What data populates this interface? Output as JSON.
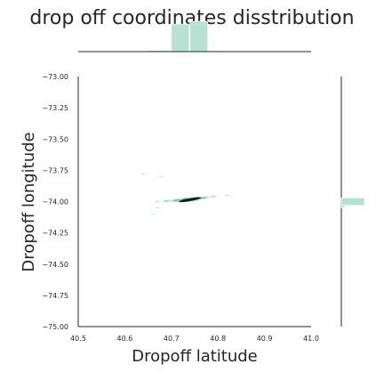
{
  "chart_data": {
    "type": "heatmap",
    "subtype": "joint-kde-with-marginal-histograms",
    "title": "drop off coordinates disstribution",
    "xlabel": "Dropoff latitude",
    "ylabel": "Dropoff longitude",
    "xlim": [
      40.5,
      41.0
    ],
    "ylim": [
      -75.0,
      -73.0
    ],
    "x_ticks": [
      40.5,
      40.6,
      40.7,
      40.8,
      40.9,
      41.0
    ],
    "x_tick_labels": [
      "40.5",
      "40.6",
      "40.7",
      "40.8",
      "40.9",
      "41.0"
    ],
    "y_ticks": [
      -73.0,
      -73.25,
      -73.5,
      -73.75,
      -74.0,
      -74.25,
      -74.5,
      -74.75,
      -75.0
    ],
    "y_tick_labels": [
      "−73.00",
      "−73.25",
      "−73.50",
      "−73.75",
      "−74.00",
      "−74.25",
      "−74.50",
      "−74.75",
      "−75.00"
    ],
    "grid": false,
    "colors": {
      "marginal_fill": "#b7e2d3",
      "density_low": "#eef8f4",
      "density_mid": "#7ccfb0",
      "density_high": "#1e5a45",
      "density_core": "#0c1f18",
      "axis": "#262626"
    },
    "marginal_x_histogram": {
      "bins": [
        {
          "x0": 40.65,
          "x1": 40.7,
          "density": 0.04
        },
        {
          "x0": 40.7,
          "x1": 40.74,
          "density": 1.0
        },
        {
          "x0": 40.74,
          "x1": 40.78,
          "density": 1.1
        },
        {
          "x0": 40.78,
          "x1": 40.82,
          "density": 0.03
        }
      ]
    },
    "marginal_y_histogram": {
      "bins": [
        {
          "y0": -74.03,
          "y1": -73.97,
          "density": 1.0
        },
        {
          "y0": -74.05,
          "y1": -74.03,
          "density": 0.15
        }
      ]
    },
    "density_points": [
      {
        "x": 40.73,
        "y": -73.985,
        "w": 1.0
      },
      {
        "x": 40.75,
        "y": -73.98,
        "w": 0.9
      },
      {
        "x": 40.71,
        "y": -73.99,
        "w": 0.6
      },
      {
        "x": 40.77,
        "y": -73.97,
        "w": 0.5
      },
      {
        "x": 40.69,
        "y": -73.995,
        "w": 0.35
      },
      {
        "x": 40.79,
        "y": -73.96,
        "w": 0.25
      },
      {
        "x": 40.67,
        "y": -74.0,
        "w": 0.15
      },
      {
        "x": 40.82,
        "y": -73.95,
        "w": 0.1
      },
      {
        "x": 40.68,
        "y": -73.8,
        "w": 0.05
      },
      {
        "x": 40.67,
        "y": -74.05,
        "w": 0.05
      },
      {
        "x": 40.64,
        "y": -73.78,
        "w": 0.05
      },
      {
        "x": 40.66,
        "y": -74.1,
        "w": 0.04
      }
    ]
  }
}
